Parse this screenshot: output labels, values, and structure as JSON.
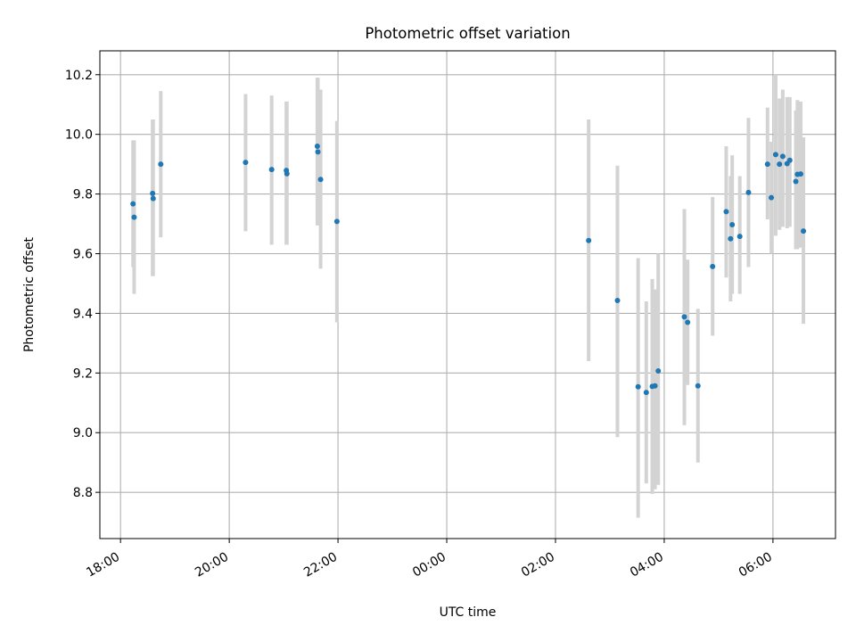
{
  "chart_data": {
    "type": "scatter",
    "title": "Photometric offset variation",
    "xlabel": "UTC time",
    "ylabel": "Photometric offset",
    "x_unit": "hours since 18:00 UTC",
    "xlim": [
      -0.38,
      13.15
    ],
    "ylim": [
      8.645,
      10.28
    ],
    "x_ticks": [
      0,
      2,
      4,
      6,
      8,
      10,
      12
    ],
    "x_tick_labels": [
      "18:00",
      "20:00",
      "22:00",
      "00:00",
      "02:00",
      "04:00",
      "06:00"
    ],
    "y_ticks": [
      8.8,
      9.0,
      9.2,
      9.4,
      9.6,
      9.8,
      10.0,
      10.2
    ],
    "y_tick_labels": [
      "8.8",
      "9.0",
      "9.2",
      "9.4",
      "9.6",
      "9.8",
      "10.0",
      "10.2"
    ],
    "grid": true,
    "colors": {
      "points": "#1f77b4",
      "errorbars": "#d3d3d3",
      "grid": "#b0b0b0"
    },
    "points": [
      {
        "x": 0.23,
        "y": 9.767,
        "lo": 9.555,
        "hi": 9.98
      },
      {
        "x": 0.25,
        "y": 9.722,
        "lo": 9.465,
        "hi": 9.98
      },
      {
        "x": 0.59,
        "y": 9.802,
        "lo": 9.525,
        "hi": 10.05
      },
      {
        "x": 0.6,
        "y": 9.785,
        "lo": 9.525,
        "hi": 10.05
      },
      {
        "x": 0.74,
        "y": 9.9,
        "lo": 9.655,
        "hi": 10.145
      },
      {
        "x": 2.3,
        "y": 9.906,
        "lo": 9.675,
        "hi": 10.135
      },
      {
        "x": 2.78,
        "y": 9.882,
        "lo": 9.63,
        "hi": 10.13
      },
      {
        "x": 3.05,
        "y": 9.879,
        "lo": 9.63,
        "hi": 10.11
      },
      {
        "x": 3.06,
        "y": 9.868,
        "lo": 9.63,
        "hi": 10.11
      },
      {
        "x": 3.62,
        "y": 9.96,
        "lo": 9.695,
        "hi": 10.19
      },
      {
        "x": 3.63,
        "y": 9.941,
        "lo": 9.695,
        "hi": 10.19
      },
      {
        "x": 3.68,
        "y": 9.849,
        "lo": 9.55,
        "hi": 10.15
      },
      {
        "x": 3.98,
        "y": 9.708,
        "lo": 9.37,
        "hi": 10.045
      },
      {
        "x": 8.61,
        "y": 9.644,
        "lo": 9.24,
        "hi": 10.05
      },
      {
        "x": 9.14,
        "y": 9.443,
        "lo": 8.985,
        "hi": 9.895
      },
      {
        "x": 9.52,
        "y": 9.154,
        "lo": 8.715,
        "hi": 9.585
      },
      {
        "x": 9.67,
        "y": 9.135,
        "lo": 8.83,
        "hi": 9.44
      },
      {
        "x": 9.78,
        "y": 9.155,
        "lo": 8.795,
        "hi": 9.515
      },
      {
        "x": 9.83,
        "y": 9.157,
        "lo": 8.81,
        "hi": 9.48
      },
      {
        "x": 9.89,
        "y": 9.207,
        "lo": 8.825,
        "hi": 9.6
      },
      {
        "x": 10.37,
        "y": 9.388,
        "lo": 9.025,
        "hi": 9.75
      },
      {
        "x": 10.43,
        "y": 9.37,
        "lo": 9.16,
        "hi": 9.58
      },
      {
        "x": 10.62,
        "y": 9.157,
        "lo": 8.9,
        "hi": 9.415
      },
      {
        "x": 10.89,
        "y": 9.557,
        "lo": 9.325,
        "hi": 9.79
      },
      {
        "x": 11.14,
        "y": 9.741,
        "lo": 9.52,
        "hi": 9.96
      },
      {
        "x": 11.22,
        "y": 9.65,
        "lo": 9.44,
        "hi": 9.86
      },
      {
        "x": 11.25,
        "y": 9.697,
        "lo": 9.465,
        "hi": 9.93
      },
      {
        "x": 11.39,
        "y": 9.658,
        "lo": 9.465,
        "hi": 9.86
      },
      {
        "x": 11.55,
        "y": 9.805,
        "lo": 9.555,
        "hi": 10.055
      },
      {
        "x": 11.9,
        "y": 9.9,
        "lo": 9.715,
        "hi": 10.09
      },
      {
        "x": 11.97,
        "y": 9.788,
        "lo": 9.6,
        "hi": 9.975
      },
      {
        "x": 12.05,
        "y": 9.932,
        "lo": 9.66,
        "hi": 10.2
      },
      {
        "x": 12.12,
        "y": 9.9,
        "lo": 9.68,
        "hi": 10.12
      },
      {
        "x": 12.18,
        "y": 9.926,
        "lo": 9.69,
        "hi": 10.15
      },
      {
        "x": 12.26,
        "y": 9.902,
        "lo": 9.685,
        "hi": 10.125
      },
      {
        "x": 12.31,
        "y": 9.913,
        "lo": 9.69,
        "hi": 10.125
      },
      {
        "x": 12.42,
        "y": 9.842,
        "lo": 9.615,
        "hi": 10.08
      },
      {
        "x": 12.45,
        "y": 9.866,
        "lo": 9.615,
        "hi": 10.115
      },
      {
        "x": 12.51,
        "y": 9.867,
        "lo": 9.62,
        "hi": 10.11
      },
      {
        "x": 12.56,
        "y": 9.676,
        "lo": 9.365,
        "hi": 9.99
      }
    ]
  }
}
